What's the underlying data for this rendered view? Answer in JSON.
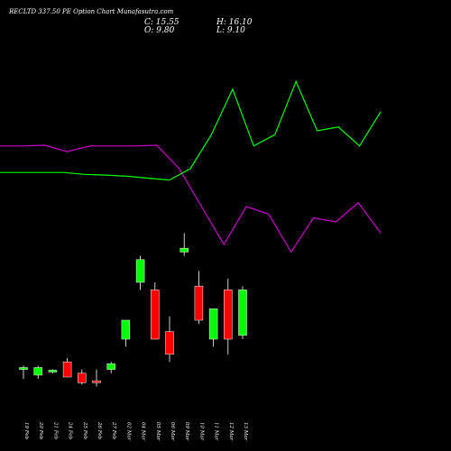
{
  "title": "RECLTD 337.50 PE Option Chart Munafasutra.com",
  "ohlc": {
    "c": "C: 15.55",
    "h": "H: 16.10",
    "o": "O: 9.80",
    "l": "L: 9.10"
  },
  "colors": {
    "up": "#00ff00",
    "down": "#ff0000",
    "line_green": "#00ff00",
    "line_magenta": "#cc00cc",
    "background": "#000000",
    "text": "#ffffff"
  },
  "chart_data": {
    "type": "candlestick",
    "categories": [
      "19 Feb",
      "20 Feb",
      "21 Feb",
      "24 Feb",
      "25 Feb",
      "26 Feb",
      "27 Feb",
      "02 Mar",
      "04 Mar",
      "05 Mar",
      "06 Mar",
      "09 Mar",
      "10 Mar",
      "11 Mar",
      "12 Mar",
      "13 Mar"
    ],
    "candles": [
      {
        "o": 0.12,
        "h": 0.13,
        "l": 0.095,
        "c": 0.125
      },
      {
        "o": 0.105,
        "h": 0.13,
        "l": 0.095,
        "c": 0.125
      },
      {
        "o": 0.115,
        "h": 0.12,
        "l": 0.11,
        "c": 0.118
      },
      {
        "o": 0.14,
        "h": 0.15,
        "l": 0.1,
        "c": 0.1
      },
      {
        "o": 0.11,
        "h": 0.12,
        "l": 0.08,
        "c": 0.085
      },
      {
        "o": 0.09,
        "h": 0.12,
        "l": 0.075,
        "c": 0.085
      },
      {
        "o": 0.12,
        "h": 0.14,
        "l": 0.11,
        "c": 0.135
      },
      {
        "o": 0.2,
        "h": 0.25,
        "l": 0.18,
        "c": 0.25
      },
      {
        "o": 0.35,
        "h": 0.42,
        "l": 0.33,
        "c": 0.41
      },
      {
        "o": 0.33,
        "h": 0.35,
        "l": 0.2,
        "c": 0.2
      },
      {
        "o": 0.22,
        "h": 0.26,
        "l": 0.14,
        "c": 0.16
      },
      {
        "o": 0.43,
        "h": 0.48,
        "l": 0.42,
        "c": 0.44
      },
      {
        "o": 0.34,
        "h": 0.38,
        "l": 0.24,
        "c": 0.25
      },
      {
        "o": 0.2,
        "h": 0.28,
        "l": 0.18,
        "c": 0.28
      },
      {
        "o": 0.33,
        "h": 0.36,
        "l": 0.16,
        "c": 0.2
      },
      {
        "o": 0.21,
        "h": 0.34,
        "l": 0.2,
        "c": 0.33
      }
    ],
    "green_line": [
      0.64,
      0.64,
      0.64,
      0.64,
      0.635,
      0.633,
      0.63,
      0.625,
      0.62,
      0.65,
      0.74,
      0.86,
      0.71,
      0.74,
      0.88,
      0.75,
      0.76,
      0.71,
      0.8
    ],
    "magenta_line": [
      0.71,
      0.71,
      0.712,
      0.695,
      0.71,
      0.71,
      0.71,
      0.712,
      0.65,
      0.55,
      0.45,
      0.55,
      0.53,
      0.43,
      0.52,
      0.51,
      0.56,
      0.48
    ],
    "ylim": [
      0,
      1
    ]
  }
}
